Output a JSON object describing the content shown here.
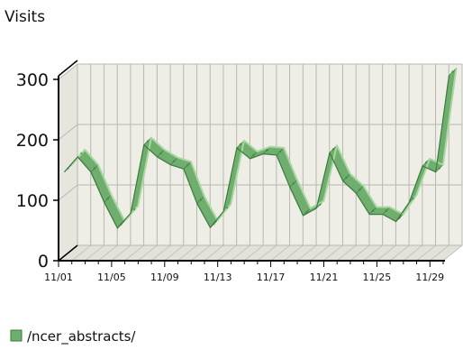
{
  "chart_data": {
    "type": "line",
    "ylabel": "Visits",
    "ylim": [
      0,
      300
    ],
    "yticks": [
      0,
      100,
      200,
      300
    ],
    "x_tick_labels": [
      "11/01",
      "11/05",
      "11/09",
      "11/13",
      "11/17",
      "11/21",
      "11/25",
      "11/29"
    ],
    "x": [
      "11/01",
      "11/02",
      "11/03",
      "11/04",
      "11/05",
      "11/06",
      "11/07",
      "11/08",
      "11/09",
      "11/10",
      "11/11",
      "11/12",
      "11/13",
      "11/14",
      "11/15",
      "11/16",
      "11/17",
      "11/18",
      "11/19",
      "11/20",
      "11/21",
      "11/22",
      "11/23",
      "11/24",
      "11/25",
      "11/26",
      "11/27",
      "11/28",
      "11/29",
      "11/30"
    ],
    "series": [
      {
        "name": "/ncer_abstracts/",
        "color": "#6fae6f",
        "values": [
          140,
          165,
          140,
          90,
          47,
          72,
          185,
          165,
          152,
          145,
          88,
          48,
          75,
          180,
          162,
          170,
          168,
          115,
          68,
          80,
          172,
          125,
          105,
          70,
          70,
          58,
          90,
          150,
          140,
          300
        ]
      }
    ],
    "grid": true,
    "three_d": true,
    "legend_position": "bottom-left"
  },
  "colors": {
    "line": "#6fae6f",
    "line_highlight": "#a8d8a0",
    "line_shadow": "#3d7a3d",
    "back_wall": "#eeeee6",
    "floor": "#e2e2da",
    "grid": "#b8b8b0",
    "axis": "#000000"
  }
}
